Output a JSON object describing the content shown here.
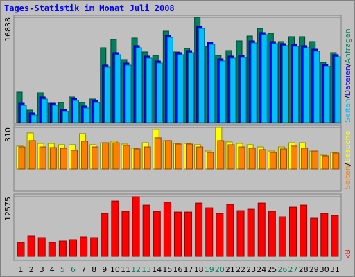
{
  "chart_data": [
    {
      "type": "bar",
      "title": "Tages-Statistik im Monat Juli 2008",
      "legend_separator": "/",
      "categories": [
        "1",
        "2",
        "3",
        "4",
        "5",
        "6",
        "7",
        "8",
        "9",
        "10",
        "11",
        "12",
        "13",
        "14",
        "15",
        "16",
        "17",
        "18",
        "19",
        "20",
        "21",
        "22",
        "23",
        "24",
        "25",
        "26",
        "27",
        "28",
        "29",
        "30",
        "31"
      ],
      "ylim": [
        0,
        16838
      ],
      "yticks": [
        16838
      ],
      "series": [
        {
          "name": "Anfragen",
          "color": "#00805c",
          "values": [
            4875,
            1994,
            4764,
            3102,
            3213,
            4099,
            3213,
            3767,
            11964,
            13293,
            10080,
            13515,
            11299,
            10745,
            14622,
            11299,
            11853,
            16838,
            12185,
            10745,
            11520,
            13071,
            13847,
            15065,
            14290,
            12960,
            13736,
            13736,
            12960,
            9637,
            11188
          ]
        },
        {
          "name": "Dateien",
          "color": "#0000ff",
          "values": [
            3100,
            1550,
            4100,
            3100,
            2100,
            3880,
            2660,
            3540,
            9200,
            11190,
            9530,
            12300,
            10640,
            9860,
            13960,
            11190,
            11520,
            15400,
            12850,
            10190,
            10640,
            10750,
            13070,
            14400,
            12960,
            12630,
            12520,
            12300,
            11740,
            9300,
            10860
          ]
        },
        {
          "name": "Seiten",
          "color": "#00c0ff",
          "values": [
            2770,
            1219,
            3767,
            2770,
            1773,
            3546,
            2327,
            3213,
            8864,
            10858,
            9196,
            11966,
            10304,
            9529,
            13628,
            10858,
            11191,
            15069,
            12520,
            9861,
            10304,
            10415,
            12742,
            14072,
            12631,
            12299,
            12188,
            11966,
            11412,
            8975,
            10526
          ]
        }
      ]
    },
    {
      "type": "bar",
      "legend_separator": "/",
      "categories": [
        "1",
        "2",
        "3",
        "4",
        "5",
        "6",
        "7",
        "8",
        "9",
        "10",
        "11",
        "12",
        "13",
        "14",
        "15",
        "16",
        "17",
        "18",
        "19",
        "20",
        "21",
        "22",
        "23",
        "24",
        "25",
        "26",
        "27",
        "28",
        "29",
        "30",
        "31"
      ],
      "ylim": [
        0,
        310
      ],
      "yticks": [
        310
      ],
      "series": [
        {
          "name": "Besuche",
          "color": "#ffff00",
          "values": [
            171,
            269,
            191,
            191,
            181,
            181,
            264,
            181,
            196,
            207,
            186,
            155,
            196,
            295,
            212,
            191,
            191,
            181,
            134,
            310,
            202,
            191,
            181,
            165,
            134,
            165,
            196,
            196,
            134,
            103,
            124
          ]
        },
        {
          "name": "Seiten",
          "color": "#ff8000",
          "values": [
            165,
            212,
            165,
            160,
            155,
            140,
            207,
            165,
            196,
            196,
            176,
            150,
            165,
            233,
            212,
            186,
            186,
            165,
            124,
            212,
            181,
            165,
            155,
            145,
            124,
            150,
            171,
            155,
            134,
            98,
            119
          ]
        }
      ]
    },
    {
      "type": "bar",
      "categories": [
        "1",
        "2",
        "3",
        "4",
        "5",
        "6",
        "7",
        "8",
        "9",
        "10",
        "11",
        "12",
        "13",
        "14",
        "15",
        "16",
        "17",
        "18",
        "19",
        "20",
        "21",
        "22",
        "23",
        "24",
        "25",
        "26",
        "27",
        "28",
        "29",
        "30",
        "31"
      ],
      "category_colors": [
        "#000000",
        "#000000",
        "#000000",
        "#000000",
        "#00805c",
        "#00805c",
        "#000000",
        "#000000",
        "#000000",
        "#000000",
        "#000000",
        "#00805c",
        "#00805c",
        "#000000",
        "#000000",
        "#000000",
        "#000000",
        "#000000",
        "#00805c",
        "#00805c",
        "#000000",
        "#000000",
        "#000000",
        "#000000",
        "#000000",
        "#00805c",
        "#00805c",
        "#000000",
        "#000000",
        "#000000",
        "#000000"
      ],
      "ylim": [
        0,
        12575
      ],
      "yticks": [
        12575
      ],
      "series": [
        {
          "name": "kB",
          "color": "#ff0000",
          "values": [
            2920,
            4234,
            3942,
            2920,
            3212,
            3504,
            4088,
            3942,
            9052,
            11680,
            9490,
            12575,
            10804,
            9490,
            11388,
            9344,
            9344,
            11242,
            10220,
            9052,
            10950,
            9636,
            9928,
            11242,
            9490,
            8322,
            10366,
            10804,
            8030,
            9052,
            8614
          ]
        }
      ]
    }
  ]
}
